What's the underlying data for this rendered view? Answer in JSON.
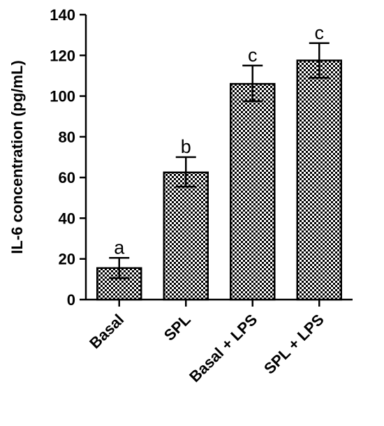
{
  "chart_data": {
    "type": "bar",
    "categories": [
      "Basal",
      "SPL",
      "Basal + LPS",
      "SPL + LPS"
    ],
    "values": [
      15.5,
      62.5,
      106,
      117.5
    ],
    "error_upper": [
      20.5,
      70,
      115,
      126
    ],
    "error_lower": [
      10.5,
      55.5,
      97.5,
      109
    ],
    "significance_letters": [
      "a",
      "b",
      "c",
      "c"
    ],
    "ylabel": "IL-6 concentration (pg/mL)",
    "xlabel": "",
    "title": "",
    "ylim": [
      0,
      140
    ],
    "yticks": [
      0,
      20,
      40,
      60,
      80,
      100,
      120,
      140
    ],
    "yticks_labels": [
      "0",
      "20",
      "40",
      "60",
      "80",
      "100",
      "120",
      "140"
    ],
    "bar_pattern": "checkerboard",
    "colors": {
      "bar_fill_dark": "#000000",
      "bar_fill_light": "#ffffff",
      "axis": "#000000"
    },
    "grid": false,
    "legend": "none"
  }
}
